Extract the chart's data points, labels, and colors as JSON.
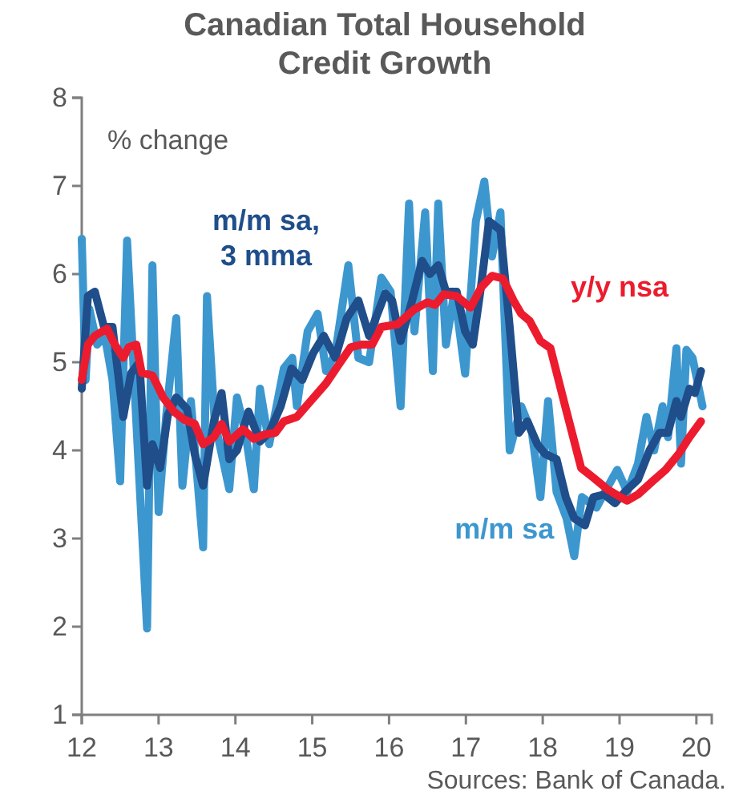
{
  "chart_data": {
    "type": "line",
    "title": "Canadian Total Household Credit Growth",
    "ylabel": "% change",
    "annotations": [
      "Sources: Bank of Canada."
    ],
    "xlim": [
      12,
      20.2
    ],
    "xticks": [
      12,
      13,
      14,
      15,
      16,
      17,
      18,
      19,
      20
    ],
    "ylim": [
      1,
      8
    ],
    "yticks": [
      1,
      2,
      3,
      4,
      5,
      6,
      7,
      8
    ],
    "grid": false,
    "legend": false,
    "line_style": "solid",
    "marker": "none",
    "series": [
      {
        "name": "m/m sa",
        "color": "#3d97cf",
        "x": [
          12.0,
          12.05,
          12.1,
          12.2,
          12.3,
          12.4,
          12.5,
          12.59,
          12.71,
          12.85,
          12.92,
          13.0,
          13.1,
          13.23,
          13.31,
          13.42,
          13.58,
          13.63,
          13.73,
          13.92,
          14.02,
          14.13,
          14.24,
          14.32,
          14.44,
          14.63,
          14.74,
          14.8,
          14.94,
          15.07,
          15.18,
          15.3,
          15.47,
          15.6,
          15.74,
          15.9,
          16.02,
          16.15,
          16.26,
          16.33,
          16.47,
          16.57,
          16.64,
          16.74,
          16.85,
          16.99,
          17.13,
          17.24,
          17.34,
          17.45,
          17.57,
          17.72,
          17.86,
          17.97,
          18.07,
          18.18,
          18.31,
          18.41,
          18.51,
          18.7,
          18.81,
          18.97,
          19.1,
          19.24,
          19.35,
          19.45,
          19.56,
          19.63,
          19.74,
          19.8,
          19.87,
          19.95,
          20.08
        ],
        "values": [
          6.4,
          4.8,
          5.6,
          5.2,
          5.3,
          4.8,
          3.65,
          6.38,
          4.33,
          1.98,
          6.1,
          3.3,
          4.4,
          5.5,
          3.6,
          4.56,
          2.9,
          5.75,
          4.33,
          3.56,
          4.6,
          4.2,
          3.56,
          4.7,
          4.07,
          4.93,
          5.05,
          4.5,
          5.35,
          5.55,
          4.9,
          5.1,
          6.1,
          5.05,
          5.0,
          5.96,
          5.8,
          4.5,
          6.8,
          5.35,
          6.7,
          4.9,
          6.8,
          5.2,
          5.8,
          4.87,
          6.6,
          7.05,
          6.2,
          6.7,
          4.0,
          4.5,
          4.2,
          3.47,
          4.56,
          3.53,
          3.23,
          2.8,
          3.47,
          3.35,
          3.53,
          3.78,
          3.53,
          3.85,
          4.38,
          4.0,
          4.5,
          4.15,
          5.16,
          3.85,
          5.14,
          5.05,
          4.5
        ]
      },
      {
        "name": "m/m sa, 3 mma",
        "color": "#1f4e8a",
        "x": [
          12.0,
          12.08,
          12.17,
          12.29,
          12.4,
          12.54,
          12.64,
          12.75,
          12.85,
          12.92,
          13.02,
          13.12,
          13.23,
          13.37,
          13.47,
          13.58,
          13.72,
          13.82,
          13.92,
          14.02,
          14.17,
          14.32,
          14.44,
          14.59,
          14.73,
          14.87,
          15.01,
          15.15,
          15.3,
          15.45,
          15.6,
          15.74,
          15.95,
          16.04,
          16.15,
          16.3,
          16.43,
          16.53,
          16.64,
          16.74,
          16.88,
          16.99,
          17.09,
          17.2,
          17.3,
          17.45,
          17.57,
          17.69,
          17.8,
          17.93,
          18.03,
          18.18,
          18.3,
          18.41,
          18.55,
          18.66,
          18.8,
          18.94,
          19.07,
          19.24,
          19.39,
          19.52,
          19.63,
          19.74,
          19.8,
          19.91,
          19.98,
          20.06
        ],
        "values": [
          4.7,
          5.75,
          5.8,
          5.4,
          5.4,
          4.38,
          4.87,
          5.0,
          3.6,
          4.07,
          3.8,
          4.4,
          4.6,
          4.47,
          3.96,
          3.6,
          4.33,
          4.65,
          3.9,
          4.0,
          4.44,
          4.1,
          4.2,
          4.5,
          4.93,
          4.8,
          5.1,
          5.3,
          5.05,
          5.5,
          5.7,
          5.3,
          5.78,
          5.7,
          5.24,
          5.7,
          6.15,
          6.0,
          6.1,
          5.8,
          5.8,
          5.35,
          5.2,
          5.88,
          6.6,
          6.5,
          5.4,
          4.2,
          4.33,
          4.07,
          3.96,
          3.9,
          3.47,
          3.23,
          3.15,
          3.47,
          3.5,
          3.4,
          3.53,
          3.67,
          4.0,
          4.2,
          4.2,
          4.56,
          4.38,
          4.7,
          4.65,
          4.9
        ]
      },
      {
        "name": "y/y nsa",
        "color": "#ec1c2e",
        "x": [
          12.0,
          12.08,
          12.17,
          12.33,
          12.43,
          12.54,
          12.61,
          12.71,
          12.78,
          12.92,
          13.06,
          13.2,
          13.33,
          13.47,
          13.58,
          13.72,
          13.82,
          13.92,
          14.1,
          14.24,
          14.38,
          14.52,
          14.63,
          14.8,
          14.97,
          15.18,
          15.35,
          15.5,
          15.64,
          15.78,
          15.9,
          16.11,
          16.33,
          16.5,
          16.6,
          16.71,
          16.88,
          17.06,
          17.2,
          17.34,
          17.48,
          17.62,
          17.72,
          17.83,
          17.97,
          18.1,
          18.31,
          18.5,
          18.66,
          18.84,
          19.01,
          19.1,
          19.24,
          19.43,
          19.6,
          19.77,
          19.91,
          20.06
        ],
        "values": [
          4.8,
          5.2,
          5.3,
          5.38,
          5.2,
          5.05,
          5.17,
          5.2,
          4.88,
          4.85,
          4.6,
          4.44,
          4.35,
          4.3,
          4.07,
          4.15,
          4.3,
          4.1,
          4.24,
          4.13,
          4.18,
          4.2,
          4.33,
          4.38,
          4.55,
          4.76,
          4.98,
          5.17,
          5.2,
          5.2,
          5.4,
          5.43,
          5.6,
          5.68,
          5.65,
          5.77,
          5.75,
          5.62,
          5.85,
          5.98,
          5.95,
          5.7,
          5.55,
          5.47,
          5.24,
          5.16,
          4.44,
          3.8,
          3.69,
          3.56,
          3.47,
          3.43,
          3.5,
          3.65,
          3.78,
          3.96,
          4.15,
          4.33
        ]
      }
    ]
  }
}
